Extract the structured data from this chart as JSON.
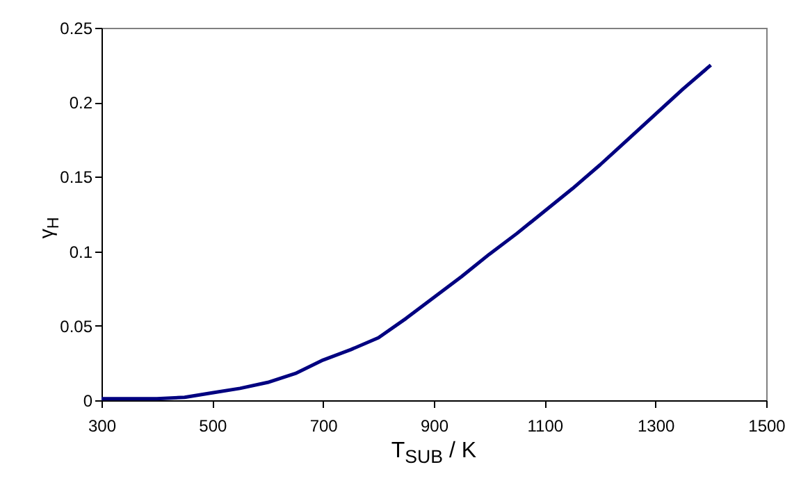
{
  "chart_data": {
    "type": "line",
    "xlabel": "T$_{SUB}$ / K",
    "ylabel": "γ$_{H}$",
    "x": [
      300,
      350,
      400,
      450,
      500,
      550,
      600,
      650,
      700,
      750,
      800,
      850,
      900,
      950,
      1000,
      1050,
      1100,
      1150,
      1200,
      1250,
      1300,
      1350,
      1400
    ],
    "series": [
      {
        "color": "#000080",
        "values": [
          0.001,
          0.001,
          0.001,
          0.002,
          0.005,
          0.008,
          0.012,
          0.018,
          0.027,
          0.034,
          0.042,
          0.055,
          0.069,
          0.083,
          0.098,
          0.112,
          0.127,
          0.142,
          0.158,
          0.175,
          0.192,
          0.209,
          0.225
        ]
      }
    ],
    "xlim": [
      300,
      1500
    ],
    "xticks": [
      300,
      500,
      700,
      900,
      1100,
      1300,
      1500
    ],
    "ylim": [
      0,
      0.25
    ],
    "yticks": [
      0,
      0.05,
      0.1,
      0.15,
      0.2,
      0.25
    ],
    "grid": false,
    "marker": "none",
    "line_style": "solid"
  }
}
